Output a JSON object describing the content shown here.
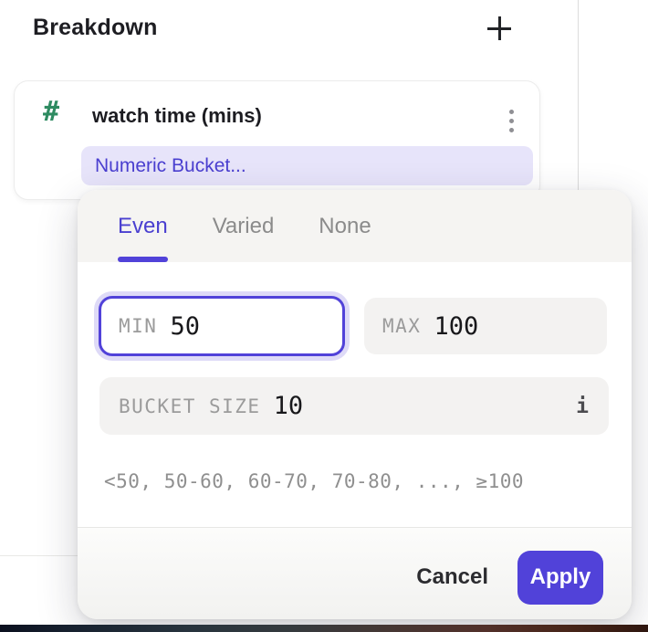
{
  "header": {
    "title": "Breakdown",
    "add_icon": "plus-icon"
  },
  "card": {
    "type_icon": "#",
    "type_icon_name": "numeric-property-hash-icon",
    "title": "watch time (mins)",
    "menu_icon": "kebab-menu-icon",
    "bucket_label": "Numeric Bucket..."
  },
  "popup": {
    "tabs": [
      {
        "label": "Even",
        "active": true
      },
      {
        "label": "Varied",
        "active": false
      },
      {
        "label": "None",
        "active": false
      }
    ],
    "min": {
      "label": "MIN",
      "value": "50"
    },
    "max": {
      "label": "MAX",
      "value": "100"
    },
    "bucket_size": {
      "label": "BUCKET SIZE",
      "value": "10",
      "info_icon": "i"
    },
    "preview": "<50, 50-60, 60-70, 70-80, ..., ≥100",
    "footer": {
      "cancel_label": "Cancel",
      "apply_label": "Apply"
    }
  },
  "colors": {
    "accent": "#5142d9",
    "accent_text": "#4a3fd0",
    "pill_bg": "#e7e4fa",
    "hash_green": "#2e8b61",
    "input_bg": "#f3f2f1",
    "popup_header_bg": "#f5f4f2",
    "label_gray": "#9b9b9b",
    "value_color": "#18181b",
    "preview_gray": "#8f8f8f",
    "inactive_tab": "#8b8b8b",
    "focus_ring": "#dedaf7"
  }
}
